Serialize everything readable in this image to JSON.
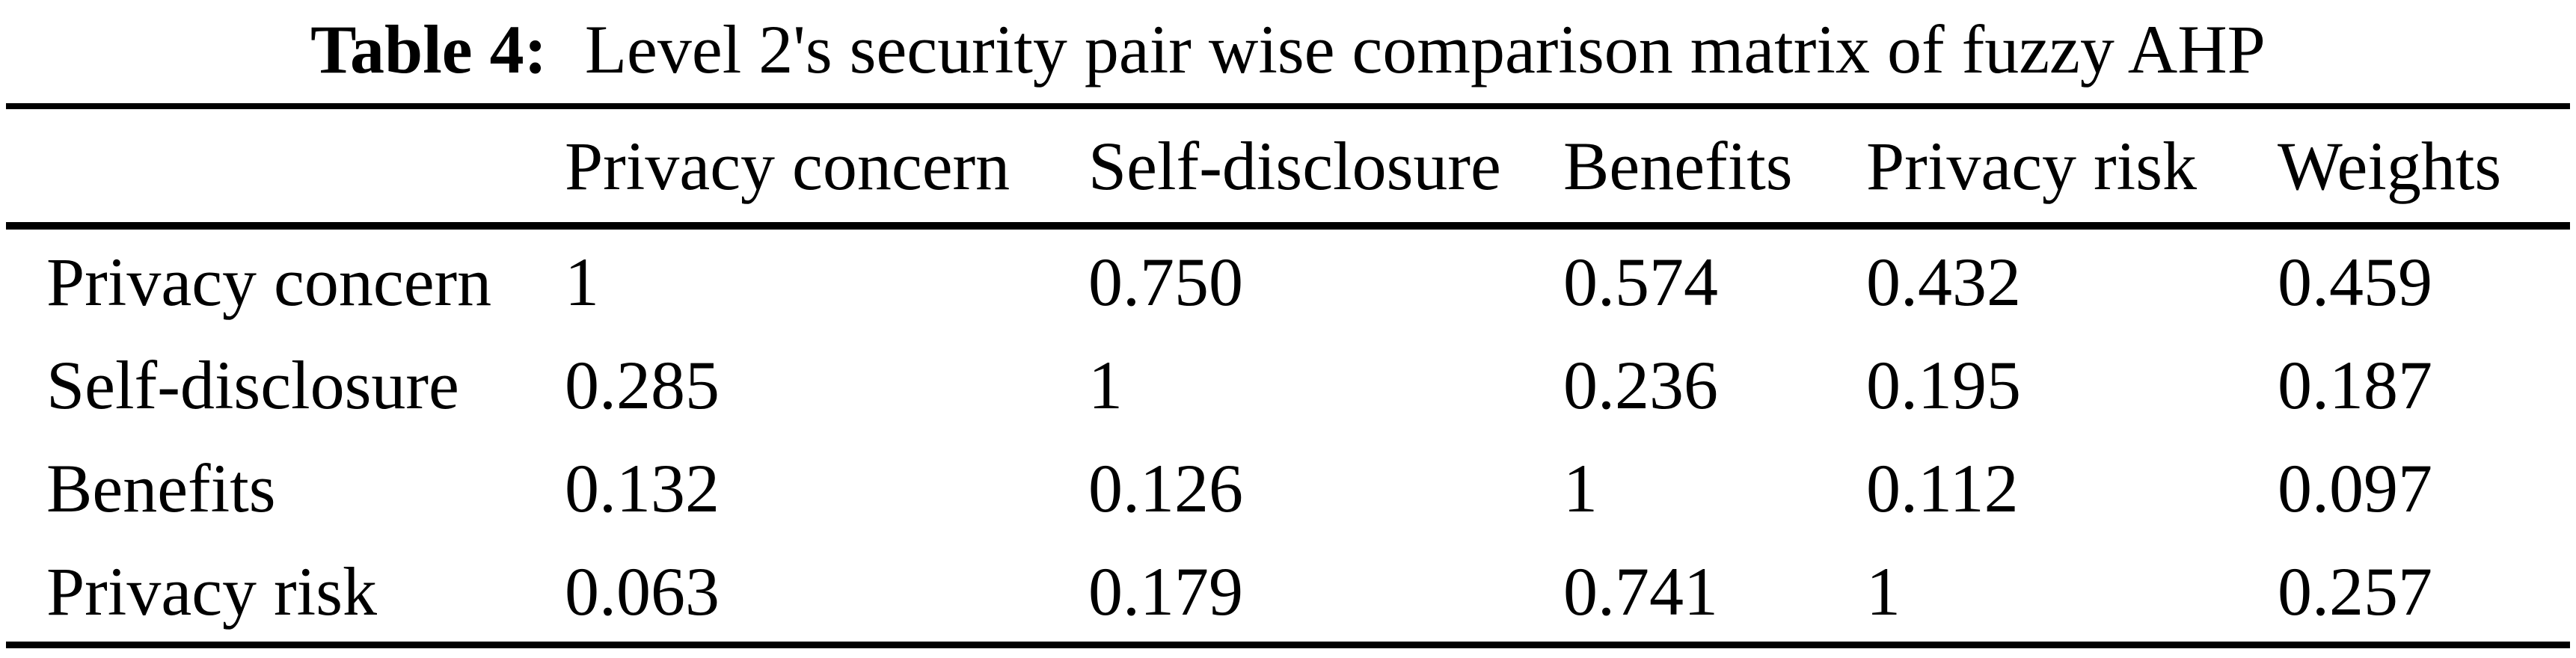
{
  "caption": {
    "label": "Table 4:",
    "text": "Level 2's security pair wise comparison matrix of fuzzy AHP"
  },
  "table": {
    "columns": [
      "",
      "Privacy concern",
      "Self-disclosure",
      "Benefits",
      "Privacy risk",
      "Weights"
    ],
    "rows": [
      {
        "label": "Privacy concern",
        "values": [
          "1",
          "0.750",
          "0.574",
          "0.432",
          "0.459"
        ]
      },
      {
        "label": "Self-disclosure",
        "values": [
          "0.285",
          "1",
          "0.236",
          "0.195",
          "0.187"
        ]
      },
      {
        "label": "Benefits",
        "values": [
          "0.132",
          "0.126",
          "1",
          "0.112",
          "0.097"
        ]
      },
      {
        "label": "Privacy risk",
        "values": [
          "0.063",
          "0.179",
          "0.741",
          "1",
          "0.257"
        ]
      }
    ]
  },
  "colors": {
    "text": "#000000",
    "background": "#ffffff",
    "rule": "#000000"
  }
}
